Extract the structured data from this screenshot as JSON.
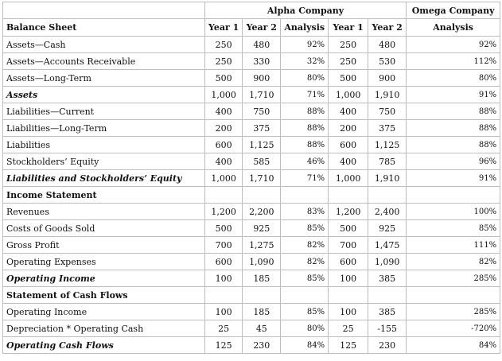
{
  "header": {
    "alpha_company": "Alpha Company",
    "omega_company": "Omega Company",
    "balance_sheet": "Balance Sheet",
    "year1": "Year 1",
    "year2": "Year 2",
    "analysis": "Analysis"
  },
  "rows": [
    {
      "label": "Assets—Cash",
      "style": "",
      "a1": "250",
      "a2": "480",
      "aa": "92%",
      "o1": "250",
      "o2": "480",
      "oa": "92%"
    },
    {
      "label": "Assets—Accounts Receivable",
      "style": "",
      "a1": "250",
      "a2": "330",
      "aa": "32%",
      "o1": "250",
      "o2": "530",
      "oa": "112%"
    },
    {
      "label": "Assets—Long-Term",
      "style": "",
      "a1": "500",
      "a2": "900",
      "aa": "80%",
      "o1": "500",
      "o2": "900",
      "oa": "80%"
    },
    {
      "label": "Assets",
      "style": "bi",
      "a1": "1,000",
      "a2": "1,710",
      "aa": "71%",
      "o1": "1,000",
      "o2": "1,910",
      "oa": "91%"
    },
    {
      "label": "Liabilities—Current",
      "style": "",
      "a1": "400",
      "a2": "750",
      "aa": "88%",
      "o1": "400",
      "o2": "750",
      "oa": "88%"
    },
    {
      "label": "Liabilities—Long-Term",
      "style": "",
      "a1": "200",
      "a2": "375",
      "aa": "88%",
      "o1": "200",
      "o2": "375",
      "oa": "88%"
    },
    {
      "label": "Liabilities",
      "style": "",
      "a1": "600",
      "a2": "1,125",
      "aa": "88%",
      "o1": "600",
      "o2": "1,125",
      "oa": "88%"
    },
    {
      "label": "Stockholders’ Equity",
      "style": "",
      "a1": "400",
      "a2": "585",
      "aa": "46%",
      "o1": "400",
      "o2": "785",
      "oa": "96%"
    },
    {
      "label": "Liabilities and Stockholders’ Equity",
      "style": "bi",
      "a1": "1,000",
      "a2": "1,710",
      "aa": "71%",
      "o1": "1,000",
      "o2": "1,910",
      "oa": "91%"
    },
    {
      "label": "Income Statement",
      "style": "b",
      "a1": "",
      "a2": "",
      "aa": "",
      "o1": "",
      "o2": "",
      "oa": ""
    },
    {
      "label": "Revenues",
      "style": "",
      "a1": "1,200",
      "a2": "2,200",
      "aa": "83%",
      "o1": "1,200",
      "o2": "2,400",
      "oa": "100%"
    },
    {
      "label": "Costs of Goods Sold",
      "style": "",
      "a1": "500",
      "a2": "925",
      "aa": "85%",
      "o1": "500",
      "o2": "925",
      "oa": "85%"
    },
    {
      "label": "Gross Profit",
      "style": "",
      "a1": "700",
      "a2": "1,275",
      "aa": "82%",
      "o1": "700",
      "o2": "1,475",
      "oa": "111%"
    },
    {
      "label": "Operating Expenses",
      "style": "",
      "a1": "600",
      "a2": "1,090",
      "aa": "82%",
      "o1": "600",
      "o2": "1,090",
      "oa": "82%"
    },
    {
      "label": "Operating Income",
      "style": "bi",
      "a1": "100",
      "a2": "185",
      "aa": "85%",
      "o1": "100",
      "o2": "385",
      "oa": "285%"
    },
    {
      "label": "Statement of Cash Flows",
      "style": "b",
      "a1": "",
      "a2": "",
      "aa": "",
      "o1": "",
      "o2": "",
      "oa": ""
    },
    {
      "label": "Operating Income",
      "style": "",
      "a1": "100",
      "a2": "185",
      "aa": "85%",
      "o1": "100",
      "o2": "385",
      "oa": "285%"
    },
    {
      "label": "Depreciation * Operating Cash",
      "style": "",
      "a1": "25",
      "a2": "45",
      "aa": "80%",
      "o1": "25",
      "o2": "-155",
      "oa": "-720%"
    },
    {
      "label": "Operating Cash Flows",
      "style": "bi",
      "a1": "125",
      "a2": "230",
      "aa": "84%",
      "o1": "125",
      "o2": "230",
      "oa": "84%"
    }
  ]
}
